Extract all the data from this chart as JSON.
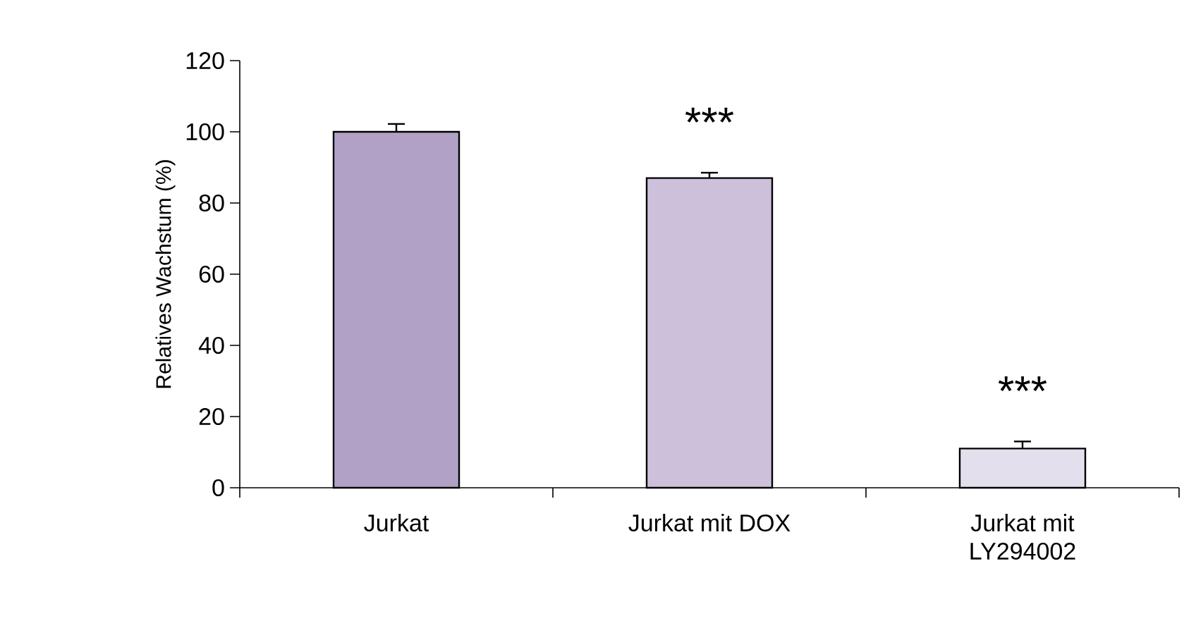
{
  "chart_data": {
    "type": "bar",
    "ylabel": "Relatives Wachstum (%)",
    "categories": [
      "Jurkat",
      "Jurkat mit DOX",
      "Jurkat mit LY294002"
    ],
    "values": [
      100,
      87,
      11
    ],
    "colors": [
      "#b1a1c7",
      "#ccc0da",
      "#e4dfec"
    ],
    "errors": [
      2.2,
      1.5,
      2
    ],
    "ylim": [
      0,
      120
    ],
    "yticks": [
      0,
      20,
      40,
      60,
      80,
      100,
      120
    ],
    "grid": false,
    "annotations": [
      "***",
      "***"
    ]
  }
}
